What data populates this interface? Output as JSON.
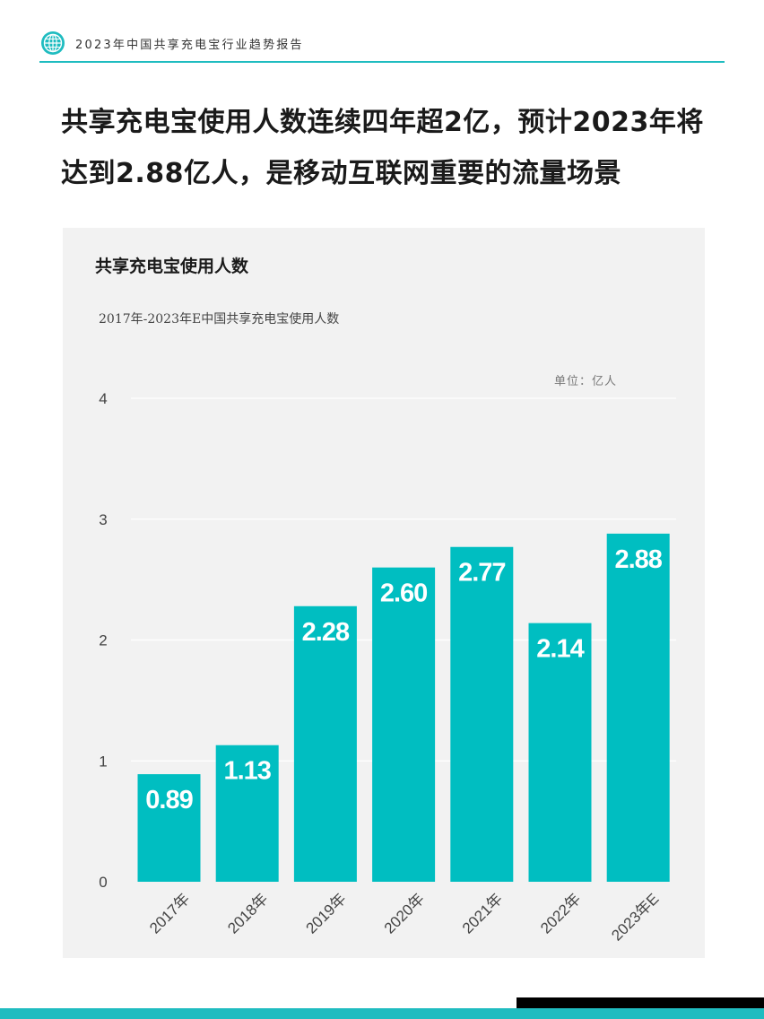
{
  "header": {
    "report_title": "2023年中国共享充电宝行业趋势报告"
  },
  "headline": {
    "line1": "共享充电宝使用人数连续四年超2亿，预计2023年将",
    "line2": "达到2.88亿人，是移动互联网重要的流量场景"
  },
  "panel": {
    "title": "共享充电宝使用人数",
    "subtitle": "2017年-2023年E中国共享充电宝使用人数",
    "unit": "单位：亿人"
  },
  "colors": {
    "accent": "#00bec1",
    "header_rule": "#1fbcc0"
  },
  "chart_data": {
    "type": "bar",
    "categories": [
      "2017年",
      "2018年",
      "2019年",
      "2020年",
      "2021年",
      "2022年",
      "2023年E"
    ],
    "values": [
      0.89,
      1.13,
      2.28,
      2.6,
      2.77,
      2.14,
      2.88
    ],
    "value_labels": [
      "0.89",
      "1.13",
      "2.28",
      "2.60",
      "2.77",
      "2.14",
      "2.88"
    ],
    "y_ticks": [
      "0",
      "1",
      "2",
      "3",
      "4"
    ],
    "ylim": [
      0,
      4
    ],
    "grid": true,
    "title": "共享充电宝使用人数",
    "subtitle": "2017年-2023年E中国共享充电宝使用人数",
    "unit": "单位：亿人"
  }
}
